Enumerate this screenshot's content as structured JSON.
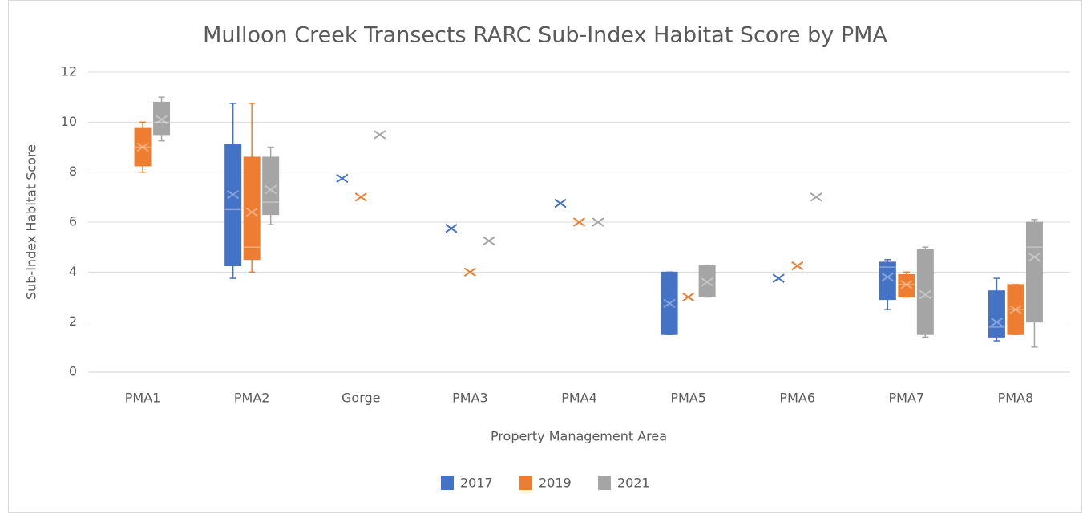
{
  "chart_data": {
    "type": "box",
    "title": "Mulloon Creek Transects RARC Sub-Index Habitat Score by PMA",
    "x_label": "Property Management Area",
    "y_label": "Sub-Index Habitat  Score",
    "categories": [
      "PMA1",
      "PMA2",
      "Gorge",
      "PMA3",
      "PMA4",
      "PMA5",
      "PMA6",
      "PMA7",
      "PMA8"
    ],
    "ylim": [
      0,
      12
    ],
    "yticks": [
      0,
      2,
      4,
      6,
      8,
      10,
      12
    ],
    "grid": true,
    "legend": "bottom",
    "series": [
      {
        "name": "2017",
        "color": "#4472c4",
        "min": [
          null,
          3.75,
          null,
          null,
          null,
          1.5,
          null,
          2.5,
          1.25
        ],
        "q1": [
          null,
          4.25,
          null,
          null,
          null,
          1.5,
          null,
          2.9,
          1.4
        ],
        "median": [
          null,
          6.5,
          null,
          null,
          null,
          null,
          null,
          4.2,
          1.8
        ],
        "q3": [
          null,
          9.1,
          null,
          null,
          null,
          4.0,
          null,
          4.4,
          3.25
        ],
        "max": [
          null,
          10.75,
          null,
          null,
          null,
          4.0,
          null,
          4.5,
          3.75
        ],
        "mean": [
          null,
          7.1,
          7.75,
          5.75,
          6.75,
          2.75,
          3.75,
          3.8,
          2.0
        ]
      },
      {
        "name": "2019",
        "color": "#ed7d31",
        "min": [
          8.0,
          4.0,
          null,
          null,
          null,
          null,
          null,
          3.0,
          1.5
        ],
        "q1": [
          8.25,
          4.5,
          null,
          null,
          null,
          null,
          null,
          3.0,
          1.5
        ],
        "median": [
          9.0,
          5.0,
          null,
          null,
          null,
          null,
          null,
          3.5,
          2.5
        ],
        "q3": [
          9.75,
          8.6,
          null,
          null,
          null,
          null,
          null,
          3.9,
          3.5
        ],
        "max": [
          10.0,
          10.75,
          null,
          null,
          null,
          null,
          null,
          4.0,
          3.5
        ],
        "mean": [
          9.0,
          6.4,
          7.0,
          4.0,
          6.0,
          3.0,
          4.25,
          3.5,
          2.5
        ]
      },
      {
        "name": "2021",
        "color": "#a5a5a5",
        "min": [
          9.25,
          5.9,
          null,
          null,
          null,
          3.0,
          null,
          1.4,
          1.0
        ],
        "q1": [
          9.5,
          6.3,
          null,
          null,
          null,
          3.0,
          null,
          1.5,
          2.0
        ],
        "median": [
          10.0,
          6.8,
          null,
          null,
          null,
          null,
          null,
          3.0,
          5.0
        ],
        "q3": [
          10.8,
          8.6,
          null,
          null,
          null,
          4.25,
          null,
          4.9,
          6.0
        ],
        "max": [
          11.0,
          9.0,
          null,
          null,
          null,
          4.25,
          null,
          5.0,
          6.1
        ],
        "mean": [
          10.1,
          7.3,
          9.5,
          5.25,
          6.0,
          3.6,
          7.0,
          3.1,
          4.6
        ]
      }
    ]
  }
}
